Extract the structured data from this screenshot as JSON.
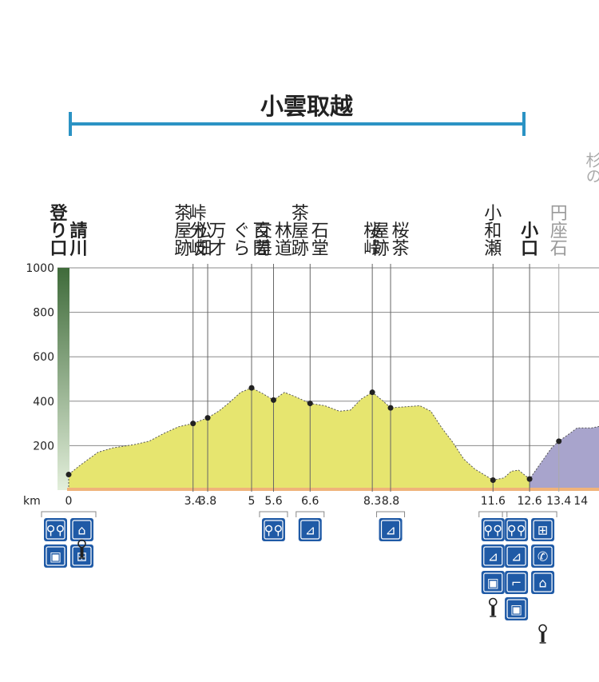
{
  "chart_data": {
    "type": "area",
    "title": "小雲取越",
    "xlabel": "km",
    "ylabel": "",
    "xlim": [
      0,
      14
    ],
    "ylim": [
      0,
      1000
    ],
    "yticks": [
      1000,
      800,
      600,
      400,
      200
    ],
    "grid": true,
    "km_tick_labels": [
      "0",
      "3.4",
      "3.8",
      "5",
      "5.6",
      "6.6",
      "8.3",
      "8.8",
      "11.6",
      "12.6",
      "13.4",
      "14"
    ],
    "landmarks": [
      {
        "label": "請川登り口",
        "km": 0,
        "elevation": 70,
        "bold": true
      },
      {
        "label": "松畑茶屋跡",
        "km": 3.4,
        "elevation": 300
      },
      {
        "label": "万才峠分岐",
        "km": 3.8,
        "elevation": 325
      },
      {
        "label": "百間ぐら",
        "km": 5,
        "elevation": 460
      },
      {
        "label": "林道交差",
        "km": 5.6,
        "elevation": 405
      },
      {
        "label": "石堂茶屋跡",
        "km": 6.6,
        "elevation": 390
      },
      {
        "label": "桜峠",
        "km": 8.3,
        "elevation": 440
      },
      {
        "label": "桜茶屋跡",
        "km": 8.8,
        "elevation": 370
      },
      {
        "label": "小和瀬",
        "km": 11.6,
        "elevation": 45
      },
      {
        "label": "小口",
        "km": 12.6,
        "elevation": 50,
        "bold": true
      },
      {
        "label": "円座石",
        "km": 13.4,
        "elevation": 220,
        "faded": true
      }
    ],
    "series": [
      {
        "values": [
          [
            0,
            70
          ],
          [
            0.3,
            110
          ],
          [
            0.8,
            170
          ],
          [
            1.2,
            190
          ],
          [
            1.8,
            205
          ],
          [
            2.2,
            220
          ],
          [
            2.6,
            255
          ],
          [
            3.0,
            285
          ],
          [
            3.4,
            300
          ],
          [
            3.8,
            325
          ],
          [
            4.1,
            355
          ],
          [
            4.4,
            395
          ],
          [
            4.7,
            440
          ],
          [
            5.0,
            460
          ],
          [
            5.3,
            435
          ],
          [
            5.6,
            405
          ],
          [
            5.9,
            440
          ],
          [
            6.2,
            420
          ],
          [
            6.6,
            390
          ],
          [
            7.0,
            380
          ],
          [
            7.4,
            355
          ],
          [
            7.7,
            360
          ],
          [
            8.0,
            410
          ],
          [
            8.3,
            440
          ],
          [
            8.6,
            400
          ],
          [
            8.8,
            370
          ],
          [
            9.2,
            375
          ],
          [
            9.6,
            380
          ],
          [
            9.9,
            355
          ],
          [
            10.2,
            280
          ],
          [
            10.5,
            215
          ],
          [
            10.8,
            140
          ],
          [
            11.1,
            95
          ],
          [
            11.4,
            65
          ],
          [
            11.6,
            45
          ],
          [
            11.9,
            55
          ],
          [
            12.1,
            85
          ],
          [
            12.3,
            90
          ],
          [
            12.6,
            50
          ]
        ],
        "color": "#e6e56f"
      },
      {
        "values": [
          [
            12.6,
            50
          ],
          [
            12.9,
            120
          ],
          [
            13.2,
            190
          ],
          [
            13.4,
            220
          ],
          [
            13.7,
            255
          ],
          [
            13.9,
            280
          ],
          [
            14.3,
            280
          ],
          [
            14.6,
            290
          ]
        ],
        "color": "#a8a4cc"
      }
    ],
    "section_bracket": {
      "label": "小雲取越",
      "from_km": 0,
      "to_km": 12.6,
      "color": "#2b93c4"
    },
    "elevation_scale_bar": {
      "from": 0,
      "to": 1000,
      "color_low": "#e3efdb",
      "color_high": "#3f6b3a"
    },
    "next_section_label": "杉の",
    "facilities": [
      {
        "km": 0,
        "icons": [
          "toilet-icon",
          "rest-house-icon",
          "vending-machine-icon",
          "souvenir-icon",
          "water-tap-icon"
        ]
      },
      {
        "km": 5.6,
        "icons": [
          "toilet-icon"
        ]
      },
      {
        "km": 6.6,
        "icons": [
          "bench-icon"
        ]
      },
      {
        "km": 8.8,
        "icons": [
          "bench-icon"
        ]
      },
      {
        "km": 11.6,
        "icons": [
          "toilet-icon",
          "bench-icon",
          "vending-machine-icon",
          "water-tap-icon"
        ]
      },
      {
        "km": 12.6,
        "icons": [
          "toilet-icon",
          "souvenir-icon",
          "bench-icon",
          "phone-icon",
          "water-fountain-icon",
          "rest-house-icon",
          "vending-machine-icon",
          "water-tap-icon"
        ]
      }
    ]
  },
  "colors": {
    "section_line": "#2b93c4",
    "icon_blue": "#1f5aa6",
    "fill_main": "#e6e56f",
    "fill_next": "#a8a4cc",
    "baseline": "#f0b37a"
  }
}
